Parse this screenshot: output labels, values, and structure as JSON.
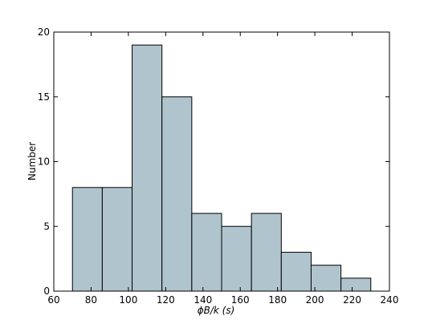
{
  "chart_data": {
    "type": "histogram",
    "xlabel": "ϕB/k (s)",
    "ylabel": "Number",
    "bins": [
      70,
      86,
      102,
      118,
      134,
      150,
      166,
      182,
      198,
      214,
      230
    ],
    "values": [
      8,
      8,
      19,
      15,
      6,
      5,
      6,
      3,
      2,
      1
    ],
    "color": "#b0c4ce",
    "xlim": [
      60,
      240
    ],
    "xticks": [
      60,
      80,
      100,
      120,
      140,
      160,
      180,
      200,
      220,
      240
    ],
    "ylim": [
      0,
      20
    ],
    "yticks": [
      0,
      5,
      10,
      15,
      20
    ]
  }
}
